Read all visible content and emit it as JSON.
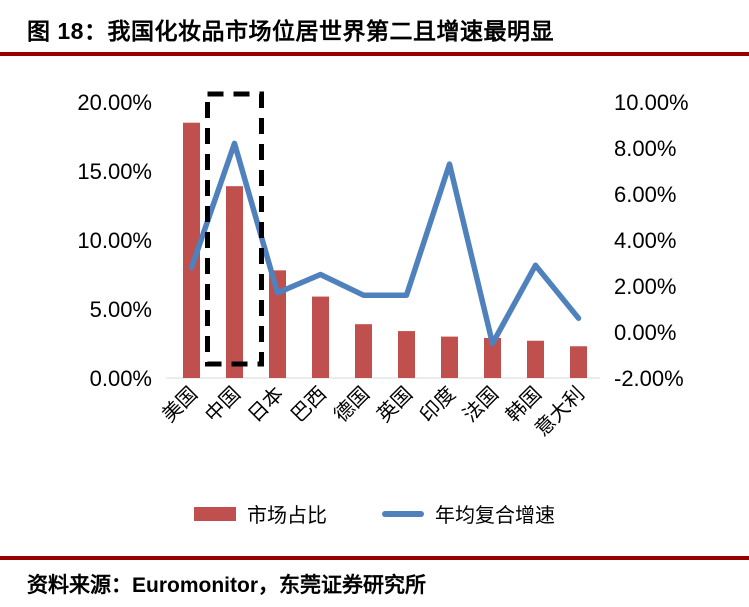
{
  "header": {
    "figure_label": "图 18：我国化妆品市场位居世界第二且增速最明显"
  },
  "footer": {
    "source": "资料来源：Euromonitor，东莞证券研究所"
  },
  "colors": {
    "rule": "#990000",
    "bar": "#c0504d",
    "line": "#4f81bd",
    "highlight_box": "#000000"
  },
  "chart_data": {
    "type": "bar+line",
    "title": "图 18：我国化妆品市场位居世界第二且增速最明显",
    "categories": [
      "美国",
      "中国",
      "日本",
      "巴西",
      "德国",
      "英国",
      "印度",
      "法国",
      "韩国",
      "意大利"
    ],
    "series": [
      {
        "name": "市场占比",
        "type": "bar",
        "axis": "left",
        "color": "#c0504d",
        "values": [
          18.5,
          13.9,
          7.8,
          5.9,
          3.9,
          3.4,
          3.0,
          2.9,
          2.7,
          2.3
        ]
      },
      {
        "name": "年均复合增速",
        "type": "line",
        "axis": "right",
        "color": "#4f81bd",
        "values": [
          2.8,
          8.2,
          1.7,
          2.5,
          1.6,
          1.6,
          7.3,
          -0.5,
          2.9,
          0.6
        ]
      }
    ],
    "left_axis": {
      "min": 0,
      "max": 20,
      "ticks": [
        "20.00%",
        "15.00%",
        "10.00%",
        "5.00%",
        "0.00%"
      ],
      "tick_values": [
        20,
        15,
        10,
        5,
        0
      ]
    },
    "right_axis": {
      "min": -2,
      "max": 10,
      "ticks": [
        "10.00%",
        "8.00%",
        "6.00%",
        "4.00%",
        "2.00%",
        "0.00%",
        "-2.00%"
      ],
      "tick_values": [
        10,
        8,
        6,
        4,
        2,
        0,
        -2
      ]
    },
    "highlight": {
      "category": "中国",
      "style": "black dashed rectangle"
    },
    "legend": [
      {
        "label": "市场占比",
        "color": "#c0504d",
        "marker": "bar"
      },
      {
        "label": "年均复合增速",
        "color": "#4f81bd",
        "marker": "line"
      }
    ],
    "grid": false,
    "legend_position": "bottom-center"
  }
}
